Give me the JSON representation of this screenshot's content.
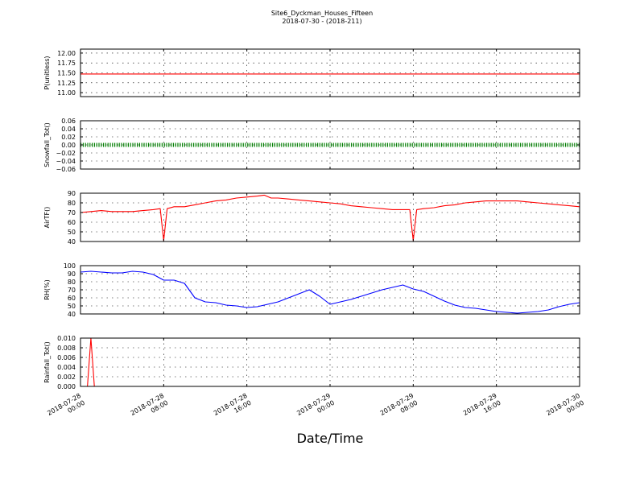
{
  "figure": {
    "title_line1": "Site6_Dyckman_Houses_Fifteen",
    "title_line2": "2018-07-30 - (2018-211)",
    "xlabel": "Date/Time"
  },
  "chart_data": {
    "type": "line",
    "x_axis": {
      "type": "datetime",
      "range": [
        "2018-07-28 00:00",
        "2018-07-30 00:00"
      ],
      "tick_values": [
        "2018-07-28 00:00",
        "2018-07-28 08:00",
        "2018-07-28 16:00",
        "2018-07-29 00:00",
        "2018-07-29 08:00",
        "2018-07-29 16:00",
        "2018-07-30 00:00"
      ],
      "tick_labels": [
        [
          "2018-07-28",
          "00:00"
        ],
        [
          "2018-07-28",
          "08:00"
        ],
        [
          "2018-07-28",
          "16:00"
        ],
        [
          "2018-07-29",
          "00:00"
        ],
        [
          "2018-07-29",
          "08:00"
        ],
        [
          "2018-07-29",
          "16:00"
        ],
        [
          "2018-07-30",
          "00:00"
        ]
      ]
    },
    "grid": true,
    "panels": [
      {
        "ylabel": "P(unitless)",
        "ylim": [
          10.9,
          12.1
        ],
        "yticks": [
          "12.00",
          "11.75",
          "11.50",
          "11.25",
          "11.00"
        ],
        "series": [
          {
            "color": "#ff0000",
            "marker": "none",
            "points": [
              [
                "2018-07-28 00:00",
                11.47
              ],
              [
                "2018-07-30 00:00",
                11.47
              ]
            ]
          }
        ]
      },
      {
        "ylabel": "Snowfall_Tot()",
        "ylim": [
          -0.06,
          0.06
        ],
        "yticks": [
          "0.06",
          "0.04",
          "0.02",
          "0.00",
          "−0.02",
          "−0.04",
          "−0.06"
        ],
        "series": [
          {
            "color": "#008000",
            "marker": "dot",
            "points": [
              [
                "2018-07-28 00:00",
                0.0
              ],
              [
                "2018-07-30 00:00",
                0.0
              ]
            ]
          }
        ]
      },
      {
        "ylabel": "AirTF()",
        "ylim": [
          40,
          90
        ],
        "yticks": [
          "90",
          "80",
          "70",
          "60",
          "50",
          "40"
        ],
        "series": [
          {
            "color": "#ff0000",
            "marker": "none",
            "points": [
              [
                "2018-07-28 00:00",
                70
              ],
              [
                "2018-07-28 01:00",
                71
              ],
              [
                "2018-07-28 02:00",
                72
              ],
              [
                "2018-07-28 03:00",
                71
              ],
              [
                "2018-07-28 04:00",
                71
              ],
              [
                "2018-07-28 05:00",
                71
              ],
              [
                "2018-07-28 06:00",
                72
              ],
              [
                "2018-07-28 07:00",
                73
              ],
              [
                "2018-07-28 07:40",
                74
              ],
              [
                "2018-07-28 08:00",
                41
              ],
              [
                "2018-07-28 08:20",
                74
              ],
              [
                "2018-07-28 09:00",
                76
              ],
              [
                "2018-07-28 10:00",
                76
              ],
              [
                "2018-07-28 11:00",
                78
              ],
              [
                "2018-07-28 12:00",
                80
              ],
              [
                "2018-07-28 13:00",
                82
              ],
              [
                "2018-07-28 14:00",
                83
              ],
              [
                "2018-07-28 15:00",
                85
              ],
              [
                "2018-07-28 16:00",
                86
              ],
              [
                "2018-07-28 17:00",
                87
              ],
              [
                "2018-07-28 17:40",
                88
              ],
              [
                "2018-07-28 18:20",
                85
              ],
              [
                "2018-07-28 19:00",
                85
              ],
              [
                "2018-07-28 20:00",
                84
              ],
              [
                "2018-07-28 21:00",
                83
              ],
              [
                "2018-07-28 22:00",
                82
              ],
              [
                "2018-07-28 23:00",
                81
              ],
              [
                "2018-07-29 00:00",
                80
              ],
              [
                "2018-07-29 01:00",
                79
              ],
              [
                "2018-07-29 02:00",
                77
              ],
              [
                "2018-07-29 03:00",
                76
              ],
              [
                "2018-07-29 04:00",
                75
              ],
              [
                "2018-07-29 05:00",
                74
              ],
              [
                "2018-07-29 06:00",
                73
              ],
              [
                "2018-07-29 07:00",
                73
              ],
              [
                "2018-07-29 07:40",
                73
              ],
              [
                "2018-07-29 08:00",
                41
              ],
              [
                "2018-07-29 08:20",
                73
              ],
              [
                "2018-07-29 09:00",
                74
              ],
              [
                "2018-07-29 10:00",
                75
              ],
              [
                "2018-07-29 11:00",
                77
              ],
              [
                "2018-07-29 12:00",
                78
              ],
              [
                "2018-07-29 13:00",
                80
              ],
              [
                "2018-07-29 14:00",
                81
              ],
              [
                "2018-07-29 15:00",
                82
              ],
              [
                "2018-07-29 16:00",
                82
              ],
              [
                "2018-07-29 17:00",
                82
              ],
              [
                "2018-07-29 18:00",
                82
              ],
              [
                "2018-07-29 19:00",
                81
              ],
              [
                "2018-07-29 20:00",
                80
              ],
              [
                "2018-07-29 21:00",
                79
              ],
              [
                "2018-07-29 22:00",
                78
              ],
              [
                "2018-07-29 23:00",
                77
              ],
              [
                "2018-07-30 00:00",
                76
              ]
            ]
          }
        ]
      },
      {
        "ylabel": "RH(%)",
        "ylim": [
          40,
          100
        ],
        "yticks": [
          "100",
          "90",
          "80",
          "70",
          "60",
          "50",
          "40"
        ],
        "series": [
          {
            "color": "#0000ff",
            "marker": "none",
            "points": [
              [
                "2018-07-28 00:00",
                92
              ],
              [
                "2018-07-28 01:00",
                93
              ],
              [
                "2018-07-28 02:00",
                92
              ],
              [
                "2018-07-28 03:00",
                91
              ],
              [
                "2018-07-28 04:00",
                91
              ],
              [
                "2018-07-28 05:00",
                93
              ],
              [
                "2018-07-28 06:00",
                92
              ],
              [
                "2018-07-28 07:00",
                89
              ],
              [
                "2018-07-28 08:00",
                82
              ],
              [
                "2018-07-28 09:00",
                82
              ],
              [
                "2018-07-28 10:00",
                78
              ],
              [
                "2018-07-28 11:00",
                60
              ],
              [
                "2018-07-28 12:00",
                55
              ],
              [
                "2018-07-28 13:00",
                54
              ],
              [
                "2018-07-28 14:00",
                51
              ],
              [
                "2018-07-28 15:00",
                50
              ],
              [
                "2018-07-28 16:00",
                48
              ],
              [
                "2018-07-28 17:00",
                49
              ],
              [
                "2018-07-28 18:00",
                52
              ],
              [
                "2018-07-28 19:00",
                55
              ],
              [
                "2018-07-28 20:00",
                60
              ],
              [
                "2018-07-28 21:00",
                65
              ],
              [
                "2018-07-28 22:00",
                70
              ],
              [
                "2018-07-28 23:00",
                62
              ],
              [
                "2018-07-29 00:00",
                52
              ],
              [
                "2018-07-29 01:00",
                55
              ],
              [
                "2018-07-29 02:00",
                58
              ],
              [
                "2018-07-29 03:00",
                62
              ],
              [
                "2018-07-29 04:00",
                66
              ],
              [
                "2018-07-29 05:00",
                70
              ],
              [
                "2018-07-29 06:00",
                73
              ],
              [
                "2018-07-29 07:00",
                76
              ],
              [
                "2018-07-29 08:00",
                71
              ],
              [
                "2018-07-29 09:00",
                68
              ],
              [
                "2018-07-29 10:00",
                62
              ],
              [
                "2018-07-29 11:00",
                56
              ],
              [
                "2018-07-29 12:00",
                51
              ],
              [
                "2018-07-29 13:00",
                48
              ],
              [
                "2018-07-29 14:00",
                47
              ],
              [
                "2018-07-29 15:00",
                45
              ],
              [
                "2018-07-29 16:00",
                43
              ],
              [
                "2018-07-29 17:00",
                42
              ],
              [
                "2018-07-29 18:00",
                41
              ],
              [
                "2018-07-29 19:00",
                42
              ],
              [
                "2018-07-29 20:00",
                43
              ],
              [
                "2018-07-29 21:00",
                45
              ],
              [
                "2018-07-29 22:00",
                49
              ],
              [
                "2018-07-29 23:00",
                52
              ],
              [
                "2018-07-30 00:00",
                54
              ]
            ]
          }
        ]
      },
      {
        "ylabel": "Rainfall_Tot()",
        "ylim": [
          0,
          0.01
        ],
        "yticks": [
          "0.010",
          "0.008",
          "0.006",
          "0.004",
          "0.002",
          "0.000"
        ],
        "series": [
          {
            "color": "#ff0000",
            "marker": "none",
            "points": [
              [
                "2018-07-28 00:00",
                0
              ],
              [
                "2018-07-28 00:40",
                0
              ],
              [
                "2018-07-28 01:00",
                0.01
              ],
              [
                "2018-07-28 01:20",
                0
              ],
              [
                "2018-07-30 00:00",
                0
              ]
            ]
          }
        ]
      }
    ]
  }
}
